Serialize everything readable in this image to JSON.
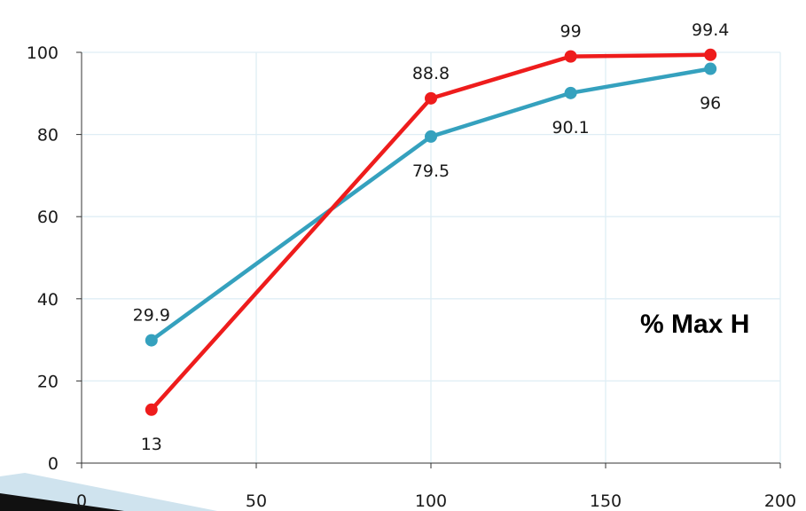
{
  "chart_data": {
    "type": "line",
    "title": "",
    "xlabel": "",
    "ylabel": "",
    "xlim": [
      0,
      200
    ],
    "ylim": [
      0,
      100
    ],
    "x_ticks": [
      0,
      50,
      100,
      150,
      200
    ],
    "y_ticks": [
      0,
      20,
      40,
      60,
      80,
      100
    ],
    "grid": true,
    "legend": "none",
    "annotation": "% Max H",
    "series": [
      {
        "color": "#35a1be",
        "x": [
          20,
          100,
          140,
          180
        ],
        "y": [
          29.9,
          79.5,
          90.1,
          96
        ],
        "labels": [
          "29.9",
          "79.5",
          "90.1",
          "96"
        ],
        "label_side": [
          "above",
          "below",
          "below",
          "below"
        ]
      },
      {
        "color": "#ee1c1c",
        "x": [
          20,
          100,
          140,
          180
        ],
        "y": [
          13,
          88.8,
          99,
          99.4
        ],
        "labels": [
          "13",
          "88.8",
          "99",
          "99.4"
        ],
        "label_side": [
          "below",
          "above",
          "above",
          "above"
        ]
      }
    ]
  }
}
